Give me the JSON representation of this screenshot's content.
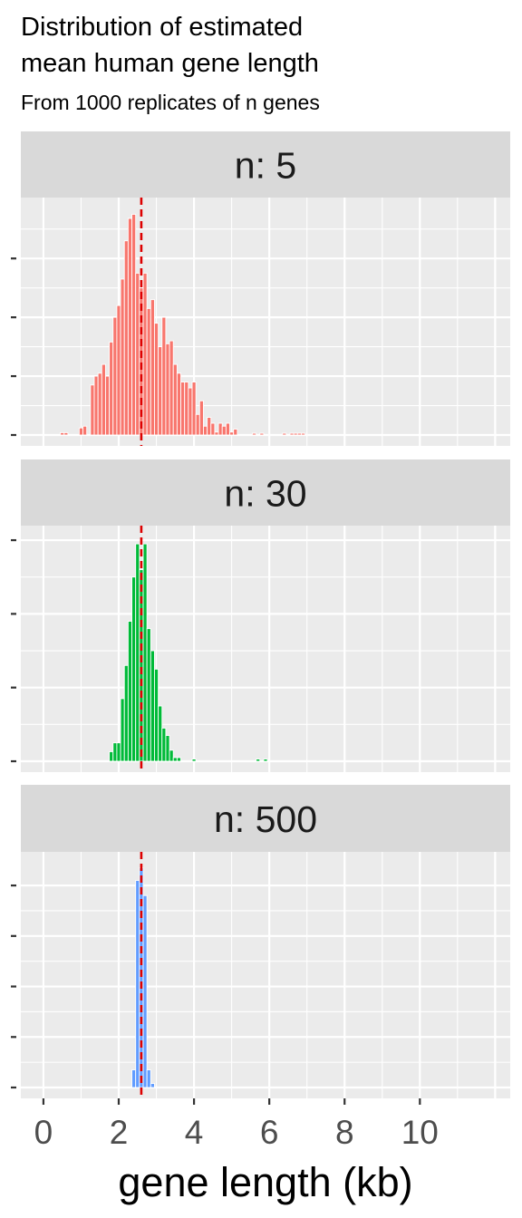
{
  "title_lines": [
    "Distribution of estimated",
    "mean human gene length"
  ],
  "subtitle": "From 1000 replicates of n genes",
  "chart_data": {
    "type": "bar",
    "title": "Distribution of estimated mean human gene length",
    "subtitle": "From 1000 replicates of n genes",
    "xlabel": "gene length (kb)",
    "ylabel": "",
    "xlim": [
      -0.6,
      12.4
    ],
    "x_ticks": [
      0,
      2,
      4,
      6,
      8,
      10
    ],
    "x_tick_labels": [
      "0",
      "2",
      "4",
      "6",
      "8",
      "10"
    ],
    "bin_width": 0.1,
    "reference_line": {
      "x": 2.6,
      "color": "#dd0000",
      "style": "dashed"
    },
    "grid": true,
    "legend": "none",
    "facets": [
      {
        "label": "n: 5",
        "fill": "#f8766d",
        "ylim": [
          0,
          38.5
        ],
        "y_ticks": [
          0,
          10,
          20,
          30
        ],
        "bins": [
          [
            0.5,
            0.4
          ],
          [
            0.6,
            0.4
          ],
          [
            1.0,
            1.2
          ],
          [
            1.1,
            1.5
          ],
          [
            1.3,
            8.5
          ],
          [
            1.4,
            10.0
          ],
          [
            1.5,
            10.5
          ],
          [
            1.6,
            12.0
          ],
          [
            1.7,
            10.0
          ],
          [
            1.8,
            15.8
          ],
          [
            1.9,
            20.0
          ],
          [
            2.0,
            22.0
          ],
          [
            2.1,
            26.5
          ],
          [
            2.2,
            33.0
          ],
          [
            2.3,
            36.8
          ],
          [
            2.4,
            37.5
          ],
          [
            2.5,
            27.5
          ],
          [
            2.6,
            25.0
          ],
          [
            2.7,
            27.5
          ],
          [
            2.8,
            21.5
          ],
          [
            2.9,
            23.0
          ],
          [
            3.0,
            19.0
          ],
          [
            3.1,
            15.0
          ],
          [
            3.2,
            20.0
          ],
          [
            3.3,
            15.5
          ],
          [
            3.4,
            16.0
          ],
          [
            3.5,
            12.0
          ],
          [
            3.6,
            10.5
          ],
          [
            3.7,
            9.0
          ],
          [
            3.8,
            9.0
          ],
          [
            3.9,
            8.0
          ],
          [
            4.0,
            9.0
          ],
          [
            4.1,
            3.5
          ],
          [
            4.2,
            5.8
          ],
          [
            4.3,
            1.5
          ],
          [
            4.4,
            3.0
          ],
          [
            4.5,
            2.0
          ],
          [
            4.6,
            0.5
          ],
          [
            4.7,
            2.0
          ],
          [
            4.8,
            1.5
          ],
          [
            4.9,
            2.0
          ],
          [
            5.0,
            0.5
          ],
          [
            5.1,
            1.0
          ],
          [
            5.6,
            0.3
          ],
          [
            5.8,
            0.3
          ],
          [
            6.4,
            0.3
          ],
          [
            6.6,
            0.3
          ],
          [
            6.7,
            0.3
          ],
          [
            6.8,
            0.3
          ],
          [
            6.9,
            0.3
          ]
        ]
      },
      {
        "label": "n: 30",
        "fill": "#00ba38",
        "ylim": [
          0,
          30.5
        ],
        "y_ticks": [
          0,
          10,
          20,
          30
        ],
        "bins": [
          [
            1.8,
            1.3
          ],
          [
            1.9,
            2.5
          ],
          [
            2.0,
            2.5
          ],
          [
            2.1,
            8.5
          ],
          [
            2.2,
            13.0
          ],
          [
            2.3,
            19.0
          ],
          [
            2.4,
            25.0
          ],
          [
            2.5,
            29.5
          ],
          [
            2.6,
            26.0
          ],
          [
            2.7,
            29.5
          ],
          [
            2.8,
            18.0
          ],
          [
            2.9,
            15.0
          ],
          [
            3.0,
            12.5
          ],
          [
            3.1,
            7.5
          ],
          [
            3.2,
            4.5
          ],
          [
            3.3,
            3.5
          ],
          [
            3.4,
            1.5
          ],
          [
            3.5,
            0.5
          ],
          [
            3.6,
            0.5
          ],
          [
            4.0,
            0.3
          ],
          [
            5.7,
            0.3
          ],
          [
            5.9,
            0.3
          ]
        ]
      },
      {
        "label": "n: 500",
        "fill": "#619cff",
        "ylim": [
          0,
          44.5
        ],
        "y_ticks": [
          0,
          10,
          20,
          30,
          40
        ],
        "bins": [
          [
            2.4,
            3.5
          ],
          [
            2.5,
            41.0
          ],
          [
            2.6,
            43.5
          ],
          [
            2.7,
            38.0
          ],
          [
            2.8,
            3.5
          ],
          [
            2.9,
            0.8
          ]
        ]
      }
    ]
  }
}
